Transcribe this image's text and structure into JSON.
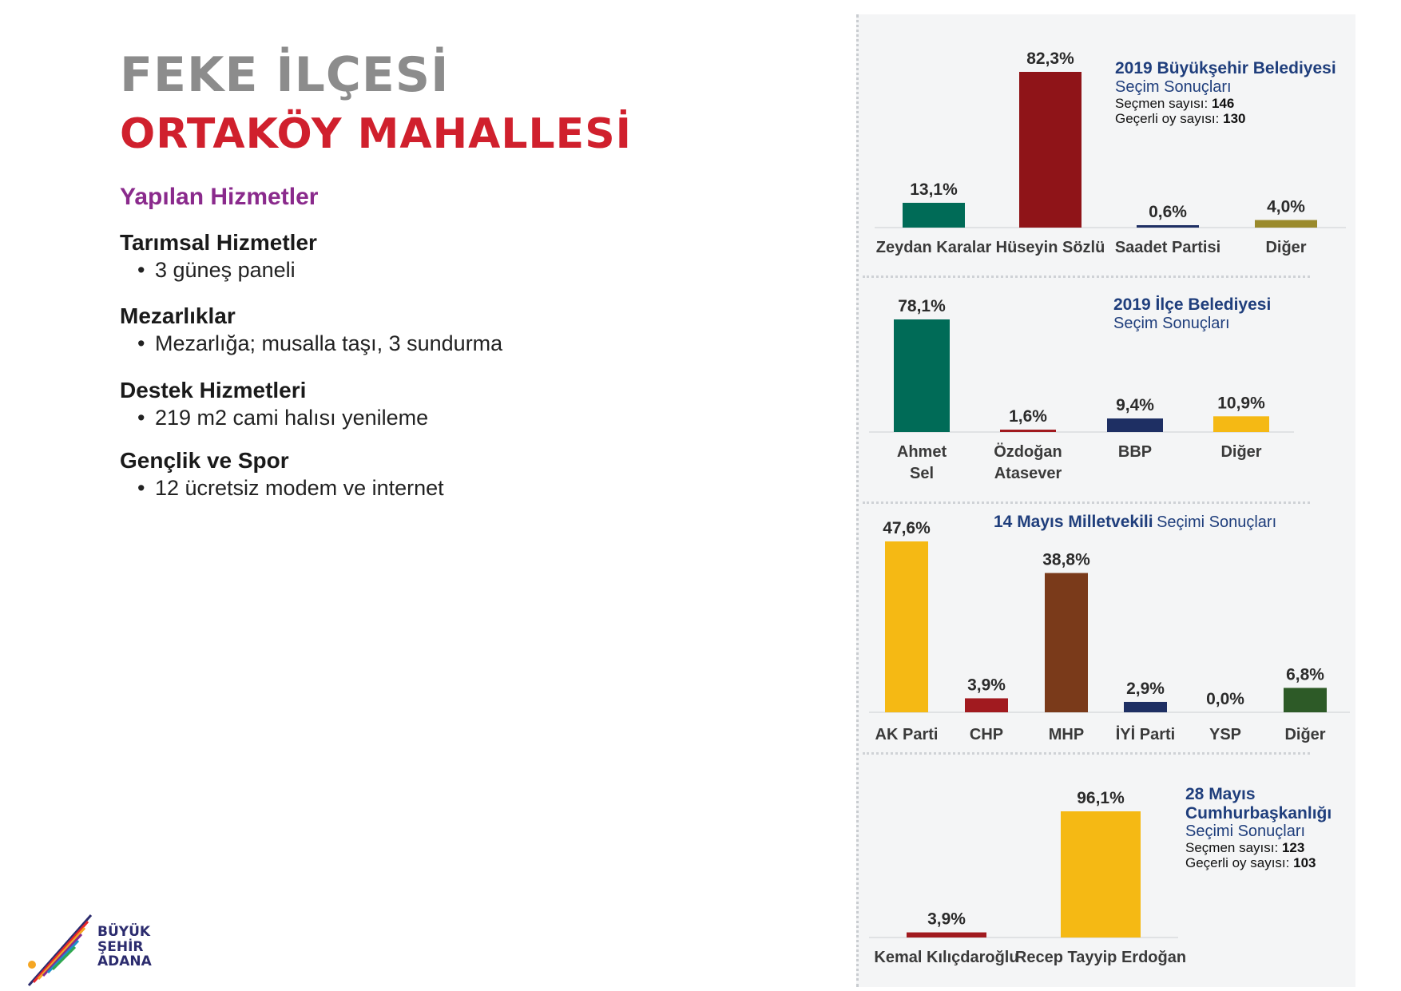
{
  "header": {
    "district": "FEKE İLÇESİ",
    "neighborhood": "ORTAKÖY MAHALLESİ"
  },
  "services": {
    "heading": "Yapılan Hizmetler",
    "groups": [
      {
        "category": "Tarımsal Hizmetler",
        "items": [
          "3 güneş paneli"
        ]
      },
      {
        "category": "Mezarlıklar",
        "items": [
          "Mezarlığa; musalla taşı, 3 sundurma"
        ]
      },
      {
        "category": "Destek Hizmetleri",
        "items": [
          "219 m2 cami halısı yenileme"
        ]
      },
      {
        "category": "Gençlik ve Spor",
        "items": [
          "12 ücretsiz modem ve internet"
        ]
      }
    ]
  },
  "logo": {
    "line1": "BÜYÜK",
    "line2": "ŞEHİR",
    "line3": "ADANA"
  },
  "chart_data": [
    {
      "type": "bar",
      "title_bold": "2019 Büyükşehir Belediyesi",
      "title_normal": "Seçim Sonuçları",
      "meta": [
        {
          "label": "Seçmen sayısı:",
          "value": "146"
        },
        {
          "label": "Geçerli oy sayısı:",
          "value": "130"
        }
      ],
      "categories": [
        "Zeydan Karalar",
        "Hüseyin Sözlü",
        "Saadet Partisi",
        "Diğer"
      ],
      "values": [
        13.1,
        82.3,
        0.6,
        4.0
      ],
      "labels": [
        "13,1%",
        "82,3%",
        "0,6%",
        "4,0%"
      ],
      "colors": [
        "#006b57",
        "#8f1418",
        "#1e2f63",
        "#9a8a2c"
      ],
      "ylim": [
        0,
        82.3
      ]
    },
    {
      "type": "bar",
      "title_bold": "2019 İlçe Belediyesi",
      "title_normal": "Seçim Sonuçları",
      "meta": [],
      "categories": [
        "Ahmet Sel",
        "Özdoğan Atasever",
        "BBP",
        "Diğer"
      ],
      "values": [
        78.1,
        1.6,
        9.4,
        10.9
      ],
      "labels": [
        "78,1%",
        "1,6%",
        "9,4%",
        "10,9%"
      ],
      "colors": [
        "#006b57",
        "#a11a1f",
        "#1e2f63",
        "#f5b914"
      ],
      "ylim": [
        0,
        78.1
      ]
    },
    {
      "type": "bar",
      "title_bold": "14 Mayıs Milletvekili",
      "title_normal": "Seçimi Sonuçları",
      "meta": [],
      "categories": [
        "AK Parti",
        "CHP",
        "MHP",
        "İYİ Parti",
        "YSP",
        "Diğer"
      ],
      "values": [
        47.6,
        3.9,
        38.8,
        2.9,
        0.0,
        6.8
      ],
      "labels": [
        "47,6%",
        "3,9%",
        "38,8%",
        "2,9%",
        "0,0%",
        "6,8%"
      ],
      "colors": [
        "#f5b914",
        "#a11a1f",
        "#7a3a1a",
        "#1e2f63",
        "#7a3a8a",
        "#2d5a27"
      ],
      "ylim": [
        0,
        47.6
      ]
    },
    {
      "type": "bar",
      "title_bold": "28 Mayıs Cumhurbaşkanlığı",
      "title_normal": "Seçimi Sonuçları",
      "meta": [
        {
          "label": "Seçmen sayısı:",
          "value": "123"
        },
        {
          "label": "Geçerli oy sayısı:",
          "value": "103"
        }
      ],
      "categories": [
        "Kemal Kılıçdaroğlu",
        "Recep Tayyip Erdoğan"
      ],
      "values": [
        3.9,
        96.1
      ],
      "labels": [
        "3,9%",
        "96,1%"
      ],
      "colors": [
        "#a11a1f",
        "#f5b914"
      ],
      "ylim": [
        0,
        96.1
      ]
    }
  ]
}
